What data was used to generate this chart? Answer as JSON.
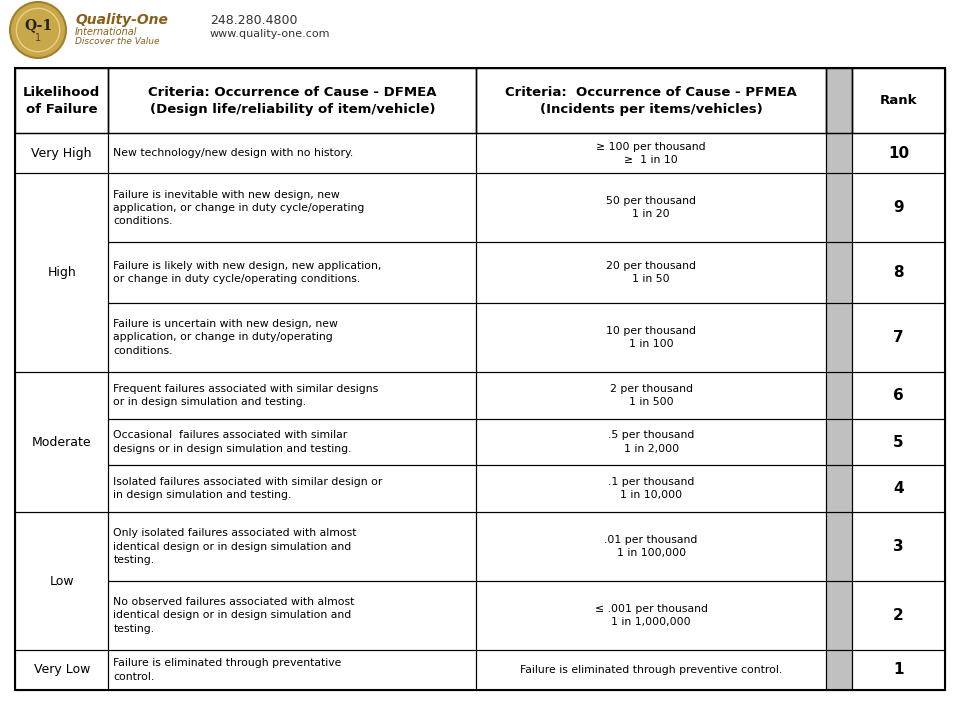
{
  "bg_color": "#ffffff",
  "border_color": "#000000",
  "gray_col_bg": "#c0c0c0",
  "header": {
    "col0": "Likelihood\nof Failure",
    "col1": "Criteria: Occurrence of Cause - DFMEA\n(Design life/reliability of item/vehicle)",
    "col2": "Criteria:  Occurrence of Cause - PFMEA\n(Incidents per items/vehicles)",
    "col4": "Rank"
  },
  "rows": [
    {
      "likelihood": "Very High",
      "likelihood_span": 1,
      "dfmea": "New technology/new design with no history.",
      "pfmea": "≥ 100 per thousand\n≥  1 in 10",
      "rank": "10"
    },
    {
      "likelihood": "High",
      "likelihood_span": 3,
      "dfmea": "Failure is inevitable with new design, new\napplication, or change in duty cycle/operating\nconditions.",
      "pfmea": "50 per thousand\n1 in 20",
      "rank": "9"
    },
    {
      "likelihood": "",
      "likelihood_span": 0,
      "dfmea": "Failure is likely with new design, new application,\nor change in duty cycle/operating conditions.",
      "pfmea": "20 per thousand\n1 in 50",
      "rank": "8"
    },
    {
      "likelihood": "",
      "likelihood_span": 0,
      "dfmea": "Failure is uncertain with new design, new\napplication, or change in duty/operating\nconditions.",
      "pfmea": "10 per thousand\n1 in 100",
      "rank": "7"
    },
    {
      "likelihood": "Moderate",
      "likelihood_span": 3,
      "dfmea": "Frequent failures associated with similar designs\nor in design simulation and testing.",
      "pfmea": "2 per thousand\n1 in 500",
      "rank": "6"
    },
    {
      "likelihood": "",
      "likelihood_span": 0,
      "dfmea": "Occasional  failures associated with similar\ndesigns or in design simulation and testing.",
      "pfmea": ".5 per thousand\n1 in 2,000",
      "rank": "5"
    },
    {
      "likelihood": "",
      "likelihood_span": 0,
      "dfmea": "Isolated failures associated with similar design or\nin design simulation and testing.",
      "pfmea": ".1 per thousand\n1 in 10,000",
      "rank": "4"
    },
    {
      "likelihood": "Low",
      "likelihood_span": 2,
      "dfmea": "Only isolated failures associated with almost\nidentical design or in design simulation and\ntesting.",
      "pfmea": ".01 per thousand\n1 in 100,000",
      "rank": "3"
    },
    {
      "likelihood": "",
      "likelihood_span": 0,
      "dfmea": "No observed failures associated with almost\nidentical design or in design simulation and\ntesting.",
      "pfmea": "≤ .001 per thousand\n1 in 1,000,000",
      "rank": "2"
    },
    {
      "likelihood": "Very Low",
      "likelihood_span": 1,
      "dfmea": "Failure is eliminated through preventative\ncontrol.",
      "pfmea": "Failure is eliminated through preventive control.",
      "rank": "1"
    }
  ],
  "logo": {
    "company": "Quality-One",
    "sub1": "International",
    "sub2": "Discover the Value",
    "phone": "248.280.4800",
    "web": "www.quality-one.com",
    "badge": "Q-1"
  }
}
